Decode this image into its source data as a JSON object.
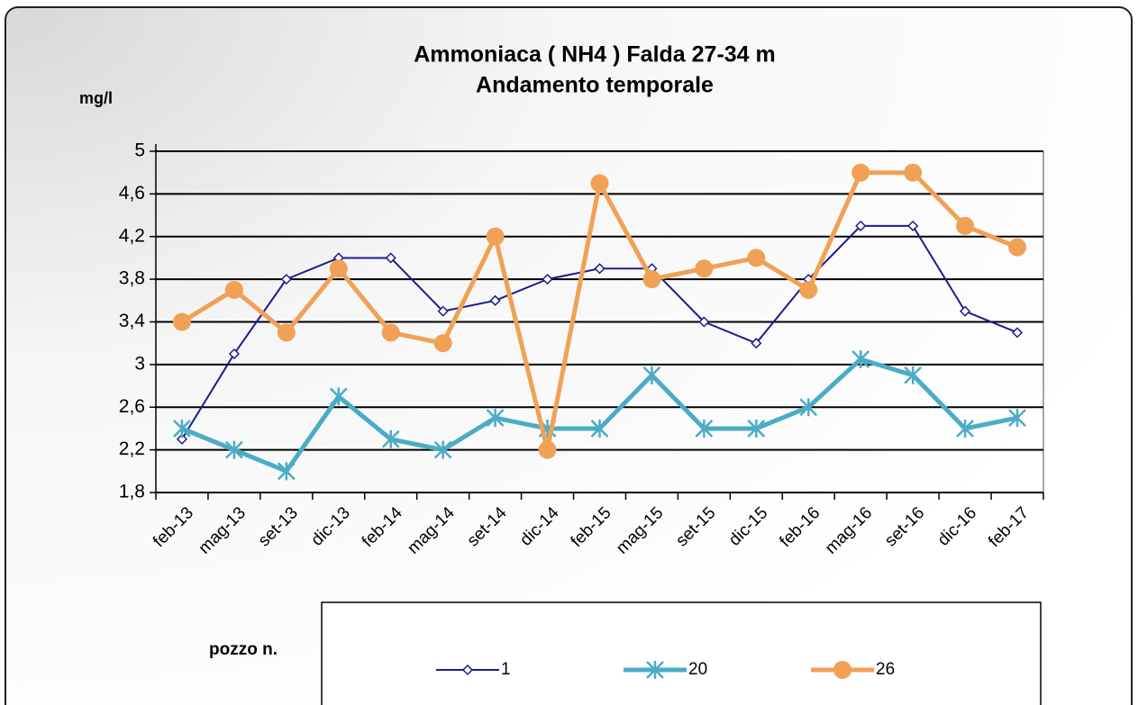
{
  "chart_data": {
    "type": "line",
    "title": "Ammoniaca ( NH4 ) Falda 27-34 m",
    "subtitle": "Andamento temporale",
    "ylabel": "mg/l",
    "legend_title": "pozzo n.",
    "categories": [
      "feb-13",
      "mag-13",
      "set-13",
      "dic-13",
      "feb-14",
      "mag-14",
      "set-14",
      "dic-14",
      "feb-15",
      "mag-15",
      "set-15",
      "dic-15",
      "feb-16",
      "mag-16",
      "set-16",
      "dic-16",
      "feb-17"
    ],
    "series": [
      {
        "name": "1",
        "color": "#1c1c8e",
        "marker": "diamond",
        "values": [
          2.3,
          3.1,
          3.8,
          4.0,
          4.0,
          3.5,
          3.6,
          3.8,
          3.9,
          3.9,
          3.4,
          3.2,
          3.8,
          4.3,
          4.3,
          3.5,
          3.3
        ]
      },
      {
        "name": "20",
        "color": "#4bacc6",
        "marker": "star",
        "values": [
          2.4,
          2.2,
          2.0,
          2.7,
          2.3,
          2.2,
          2.5,
          2.4,
          2.4,
          2.9,
          2.4,
          2.4,
          2.6,
          3.05,
          2.9,
          2.4,
          2.5
        ]
      },
      {
        "name": "26",
        "color": "#f0a156",
        "marker": "circle",
        "values": [
          3.4,
          3.7,
          3.3,
          3.9,
          3.3,
          3.2,
          4.2,
          2.2,
          4.7,
          3.8,
          3.9,
          4.0,
          3.7,
          4.8,
          4.8,
          4.3,
          4.1
        ]
      }
    ],
    "ylim": [
      1.8,
      5
    ],
    "yticks": [
      {
        "value": 1.8,
        "label": "1,8"
      },
      {
        "value": 2.2,
        "label": "2,2"
      },
      {
        "value": 2.6,
        "label": "2,6"
      },
      3,
      {
        "value": 3.4,
        "label": "3,4"
      },
      {
        "value": 3.8,
        "label": "3,8"
      },
      {
        "value": 4.2,
        "label": "4,2"
      },
      {
        "value": 4.6,
        "label": "4,6"
      },
      5
    ],
    "grid": true
  }
}
